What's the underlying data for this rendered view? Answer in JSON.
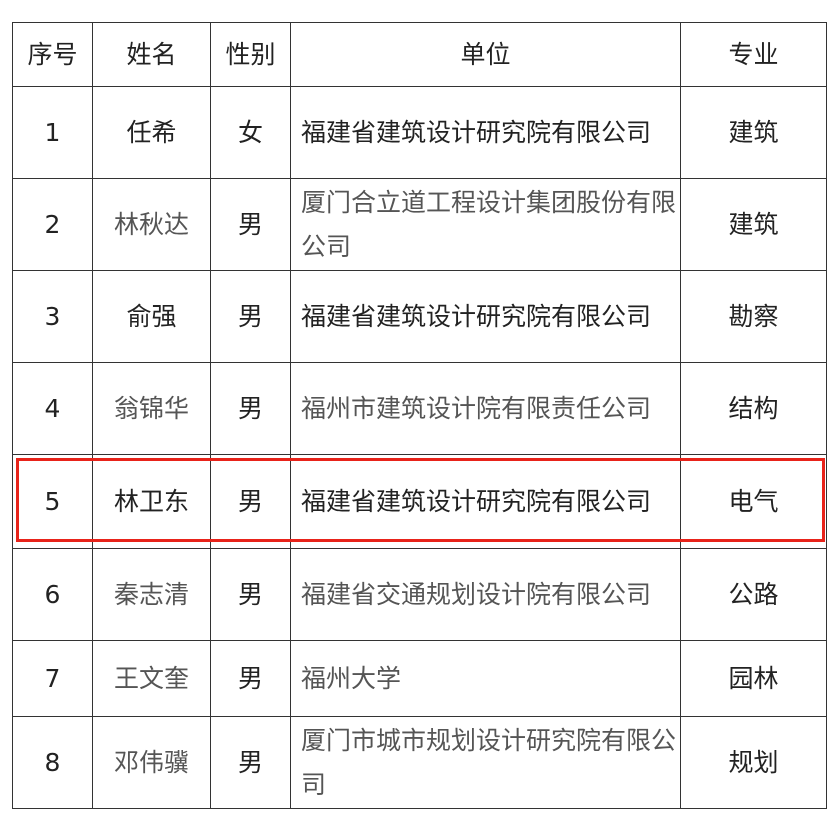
{
  "table": {
    "headers": [
      "序号",
      "姓名",
      "性别",
      "单位",
      "专业"
    ],
    "rows": [
      {
        "no": "1",
        "name": "任希",
        "gender": "女",
        "unit": "福建省建筑设计研究院有限公司",
        "major": "建筑"
      },
      {
        "no": "2",
        "name": "林秋达",
        "gender": "男",
        "unit": "厦门合立道工程设计集团股份有限公司",
        "major": "建筑"
      },
      {
        "no": "3",
        "name": "俞强",
        "gender": "男",
        "unit": "福建省建筑设计研究院有限公司",
        "major": "勘察"
      },
      {
        "no": "4",
        "name": "翁锦华",
        "gender": "男",
        "unit": "福州市建筑设计院有限责任公司",
        "major": "结构"
      },
      {
        "no": "5",
        "name": "林卫东",
        "gender": "男",
        "unit": "福建省建筑设计研究院有限公司",
        "major": "电气"
      },
      {
        "no": "6",
        "name": "秦志清",
        "gender": "男",
        "unit": "福建省交通规划设计院有限公司",
        "major": "公路"
      },
      {
        "no": "7",
        "name": "王文奎",
        "gender": "男",
        "unit": "福州大学",
        "major": "园林"
      },
      {
        "no": "8",
        "name": "邓伟骥",
        "gender": "男",
        "unit": "厦门市城市规划设计研究院有限公司",
        "major": "规划"
      }
    ]
  },
  "highlight": {
    "row": "5",
    "color": "#e8231a"
  }
}
